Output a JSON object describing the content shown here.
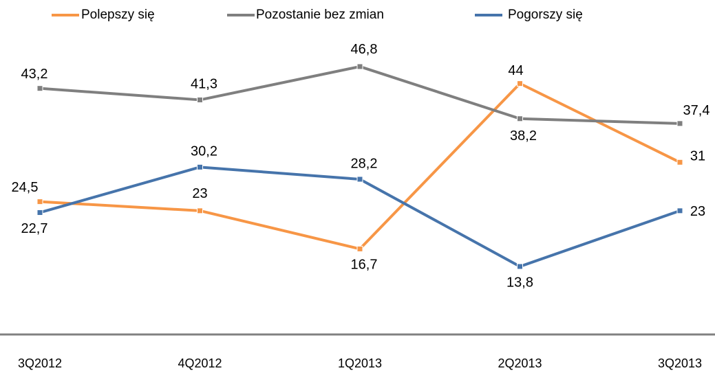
{
  "chart_data": {
    "type": "line",
    "categories": [
      "3Q2012",
      "4Q2012",
      "1Q2013",
      "2Q2013",
      "3Q2013"
    ],
    "series": [
      {
        "name": "Polepszy się",
        "color": "#f79646",
        "values": [
          24.5,
          23,
          16.7,
          44,
          31
        ],
        "value_labels": [
          "24,5",
          "23",
          "16,7",
          "44",
          "31"
        ]
      },
      {
        "name": "Pozostanie bez zmian",
        "color": "#7f7f7f",
        "values": [
          43.2,
          41.3,
          46.8,
          38.2,
          37.4
        ],
        "value_labels": [
          "43,2",
          "41,3",
          "46,8",
          "38,2",
          "37,4"
        ]
      },
      {
        "name": "Pogorszy się",
        "color": "#4674ab",
        "values": [
          22.7,
          30.2,
          28.2,
          13.8,
          23
        ],
        "value_labels": [
          "22,7",
          "30,2",
          "28,2",
          "13,8",
          "23"
        ]
      }
    ],
    "ylim": [
      0,
      50
    ]
  }
}
